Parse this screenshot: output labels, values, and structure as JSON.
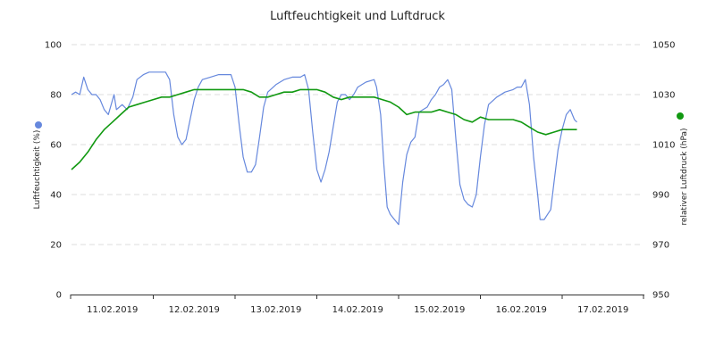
{
  "chart_data": {
    "type": "line",
    "title": "Luftfeuchtigkeit und Luftdruck",
    "x_tick_labels": [
      "11.02.2019",
      "12.02.2019",
      "13.02.2019",
      "14.02.2019",
      "15.02.2019",
      "16.02.2019",
      "17.02.2019"
    ],
    "x_range_days": [
      0,
      7.0
    ],
    "grid": true,
    "y_left": {
      "label": "Luftfeuchtigkeit (%)",
      "min": 0,
      "max": 100,
      "ticks": [
        "0",
        "20",
        "40",
        "60",
        "80",
        "100"
      ],
      "color": "#6688dd"
    },
    "y_right": {
      "label": "relativer Luftdruck (hPa)",
      "min": 950,
      "max": 1050,
      "ticks": [
        "950",
        "970",
        "990",
        "1010",
        "1030",
        "1050"
      ],
      "color": "#119911"
    },
    "series": [
      {
        "axis": "left",
        "color": "#6688dd",
        "points": [
          [
            0.0,
            80
          ],
          [
            0.05,
            81
          ],
          [
            0.1,
            80
          ],
          [
            0.15,
            87
          ],
          [
            0.2,
            82
          ],
          [
            0.25,
            80
          ],
          [
            0.3,
            80
          ],
          [
            0.35,
            78
          ],
          [
            0.4,
            74
          ],
          [
            0.45,
            72
          ],
          [
            0.52,
            80
          ],
          [
            0.55,
            74
          ],
          [
            0.62,
            76
          ],
          [
            0.68,
            74
          ],
          [
            0.75,
            79
          ],
          [
            0.8,
            86
          ],
          [
            0.88,
            88
          ],
          [
            0.95,
            89
          ],
          [
            1.05,
            89
          ],
          [
            1.15,
            89
          ],
          [
            1.2,
            86
          ],
          [
            1.25,
            72
          ],
          [
            1.3,
            63
          ],
          [
            1.35,
            60
          ],
          [
            1.4,
            62
          ],
          [
            1.45,
            70
          ],
          [
            1.5,
            78
          ],
          [
            1.55,
            83
          ],
          [
            1.6,
            86
          ],
          [
            1.7,
            87
          ],
          [
            1.8,
            88
          ],
          [
            1.9,
            88
          ],
          [
            1.95,
            88
          ],
          [
            2.0,
            83
          ],
          [
            2.05,
            68
          ],
          [
            2.1,
            55
          ],
          [
            2.15,
            49
          ],
          [
            2.2,
            49
          ],
          [
            2.25,
            52
          ],
          [
            2.3,
            63
          ],
          [
            2.35,
            75
          ],
          [
            2.4,
            81
          ],
          [
            2.5,
            84
          ],
          [
            2.6,
            86
          ],
          [
            2.7,
            87
          ],
          [
            2.8,
            87
          ],
          [
            2.85,
            88
          ],
          [
            2.9,
            82
          ],
          [
            2.95,
            65
          ],
          [
            3.0,
            50
          ],
          [
            3.05,
            45
          ],
          [
            3.1,
            50
          ],
          [
            3.15,
            57
          ],
          [
            3.2,
            67
          ],
          [
            3.25,
            77
          ],
          [
            3.3,
            80
          ],
          [
            3.35,
            80
          ],
          [
            3.4,
            78
          ],
          [
            3.45,
            80
          ],
          [
            3.5,
            83
          ],
          [
            3.6,
            85
          ],
          [
            3.7,
            86
          ],
          [
            3.73,
            83
          ],
          [
            3.78,
            72
          ],
          [
            3.82,
            52
          ],
          [
            3.86,
            35
          ],
          [
            3.9,
            32
          ],
          [
            3.95,
            30
          ],
          [
            4.0,
            28
          ],
          [
            4.05,
            45
          ],
          [
            4.1,
            56
          ],
          [
            4.15,
            61
          ],
          [
            4.2,
            63
          ],
          [
            4.25,
            73
          ],
          [
            4.3,
            74
          ],
          [
            4.35,
            75
          ],
          [
            4.4,
            78
          ],
          [
            4.45,
            80
          ],
          [
            4.5,
            83
          ],
          [
            4.55,
            84
          ],
          [
            4.6,
            86
          ],
          [
            4.65,
            82
          ],
          [
            4.7,
            62
          ],
          [
            4.75,
            44
          ],
          [
            4.8,
            38
          ],
          [
            4.85,
            36
          ],
          [
            4.9,
            35
          ],
          [
            4.95,
            40
          ],
          [
            5.0,
            55
          ],
          [
            5.05,
            68
          ],
          [
            5.1,
            76
          ],
          [
            5.2,
            79
          ],
          [
            5.3,
            81
          ],
          [
            5.4,
            82
          ],
          [
            5.45,
            83
          ],
          [
            5.5,
            83
          ],
          [
            5.55,
            86
          ],
          [
            5.6,
            76
          ],
          [
            5.65,
            55
          ],
          [
            5.7,
            40
          ],
          [
            5.73,
            30
          ],
          [
            5.78,
            30
          ],
          [
            5.82,
            32
          ],
          [
            5.86,
            34
          ],
          [
            5.9,
            45
          ],
          [
            5.95,
            58
          ],
          [
            6.0,
            66
          ],
          [
            6.05,
            72
          ],
          [
            6.1,
            74
          ],
          [
            6.15,
            70
          ],
          [
            6.18,
            69
          ]
        ]
      },
      {
        "axis": "right",
        "color": "#119911",
        "points": [
          [
            0.0,
            1000
          ],
          [
            0.1,
            1003
          ],
          [
            0.2,
            1007
          ],
          [
            0.3,
            1012
          ],
          [
            0.4,
            1016
          ],
          [
            0.5,
            1019
          ],
          [
            0.6,
            1022
          ],
          [
            0.7,
            1025
          ],
          [
            0.8,
            1026
          ],
          [
            0.9,
            1027
          ],
          [
            1.0,
            1028
          ],
          [
            1.1,
            1029
          ],
          [
            1.2,
            1029
          ],
          [
            1.3,
            1030
          ],
          [
            1.4,
            1031
          ],
          [
            1.5,
            1032
          ],
          [
            1.6,
            1032
          ],
          [
            1.7,
            1032
          ],
          [
            1.8,
            1032
          ],
          [
            1.9,
            1032
          ],
          [
            2.0,
            1032
          ],
          [
            2.1,
            1032
          ],
          [
            2.2,
            1031
          ],
          [
            2.3,
            1029
          ],
          [
            2.4,
            1029
          ],
          [
            2.5,
            1030
          ],
          [
            2.6,
            1031
          ],
          [
            2.7,
            1031
          ],
          [
            2.8,
            1032
          ],
          [
            2.9,
            1032
          ],
          [
            3.0,
            1032
          ],
          [
            3.1,
            1031
          ],
          [
            3.2,
            1029
          ],
          [
            3.3,
            1028
          ],
          [
            3.4,
            1029
          ],
          [
            3.5,
            1029
          ],
          [
            3.6,
            1029
          ],
          [
            3.7,
            1029
          ],
          [
            3.8,
            1028
          ],
          [
            3.9,
            1027
          ],
          [
            4.0,
            1025
          ],
          [
            4.1,
            1022
          ],
          [
            4.2,
            1023
          ],
          [
            4.3,
            1023
          ],
          [
            4.4,
            1023
          ],
          [
            4.5,
            1024
          ],
          [
            4.6,
            1023
          ],
          [
            4.7,
            1022
          ],
          [
            4.8,
            1020
          ],
          [
            4.9,
            1019
          ],
          [
            5.0,
            1021
          ],
          [
            5.1,
            1020
          ],
          [
            5.2,
            1020
          ],
          [
            5.3,
            1020
          ],
          [
            5.4,
            1020
          ],
          [
            5.5,
            1019
          ],
          [
            5.6,
            1017
          ],
          [
            5.7,
            1015
          ],
          [
            5.8,
            1014
          ],
          [
            5.9,
            1015
          ],
          [
            6.0,
            1016
          ],
          [
            6.1,
            1016
          ],
          [
            6.18,
            1016
          ]
        ]
      }
    ]
  }
}
